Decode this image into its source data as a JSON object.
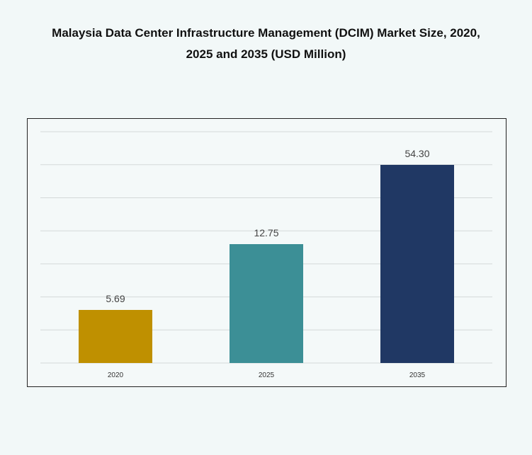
{
  "chart_data": {
    "type": "bar",
    "title_line1": "Malaysia Data Center Infrastructure Management (DCIM) Market Size, 2020,",
    "title_line2": "2025 and 2035 (USD Million)",
    "categories": [
      "2020",
      "2025",
      "2035"
    ],
    "values": [
      5.69,
      12.75,
      54.3
    ],
    "data_labels": [
      "5.69",
      "12.75",
      "54.30"
    ],
    "colors": [
      "#bf9000",
      "#3c8f96",
      "#203864"
    ],
    "grid": true,
    "legend": "none"
  }
}
